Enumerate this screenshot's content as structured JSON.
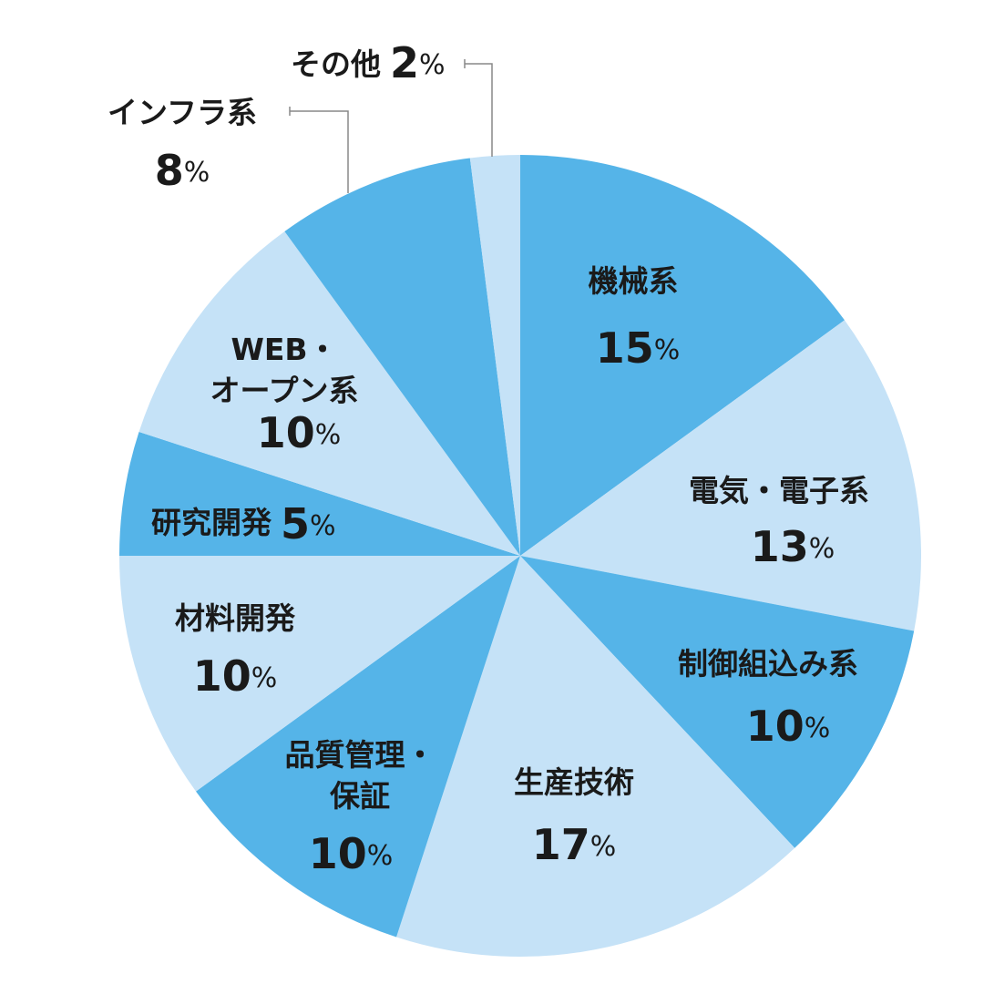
{
  "chart_data": {
    "type": "pie",
    "categories": [
      "機械系",
      "電気・電子系",
      "制御組込み系",
      "生産技術",
      "品質管理・\n保証",
      "材料開発",
      "研究開発",
      "WEB・\nオープン系",
      "インフラ系",
      "その他"
    ],
    "values": [
      15,
      13,
      10,
      17,
      10,
      10,
      5,
      10,
      8,
      2
    ],
    "value_labels": [
      "15%",
      "13%",
      "10%",
      "17%",
      "10%",
      "10%",
      "5%",
      "10%",
      "8%",
      "2%"
    ],
    "colors": [
      "#55b4e8",
      "#c5e2f7",
      "#55b4e8",
      "#c5e2f7",
      "#55b4e8",
      "#c5e2f7",
      "#55b4e8",
      "#c5e2f7",
      "#55b4e8",
      "#c5e2f7"
    ]
  }
}
